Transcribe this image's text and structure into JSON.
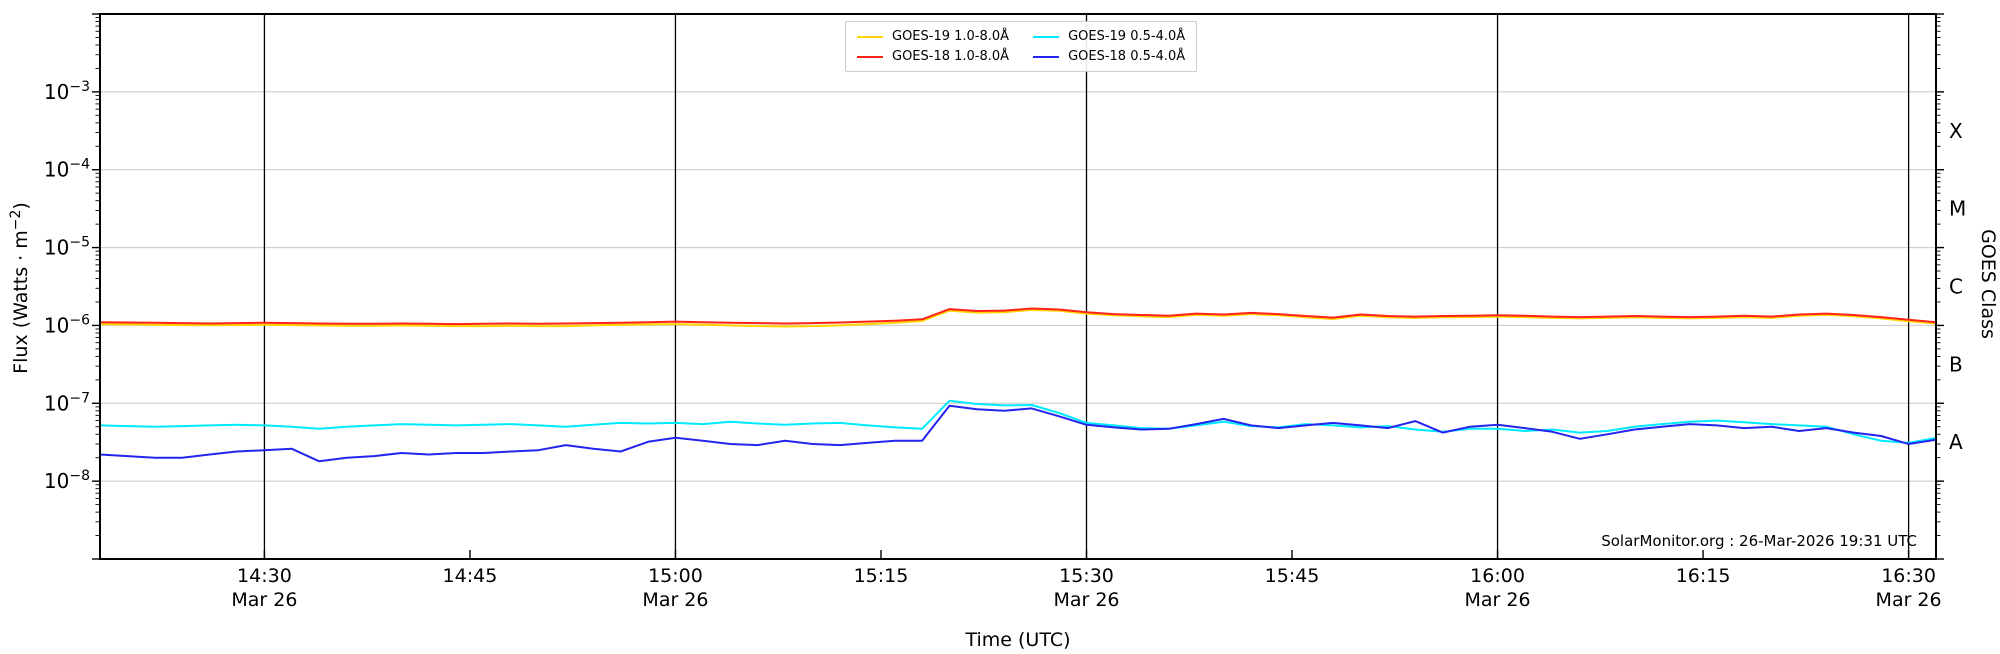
{
  "watermark": "SolarMonitor.org : 26-Mar-2026 19:31 UTC",
  "legend": {
    "items": [
      {
        "label": "GOES-19 1.0-8.0Å",
        "color": "#ffd400"
      },
      {
        "label": "GOES-18 1.0-8.0Å",
        "color": "#ff2318"
      },
      {
        "label": "GOES-19 0.5-4.0Å",
        "color": "#00eaff"
      },
      {
        "label": "GOES-18 0.5-4.0Å",
        "color": "#2424ee"
      }
    ]
  },
  "chart_data": {
    "type": "line",
    "title": "",
    "xlabel": "Time (UTC)",
    "ylabel": "Flux (Watts · m⁻²)",
    "ylabel_parts": [
      "Flux (Watts · m",
      "−2",
      ")"
    ],
    "grid": true,
    "legend_position": "top-center",
    "x_axis": {
      "units": "minutes after 14:00 UTC, Mar 26",
      "start_minute": 18,
      "step_minutes": 2,
      "end_minute": 152,
      "ticks": [
        {
          "minute": 30,
          "label": "14:30",
          "sublabel": "Mar 26",
          "major_line": true
        },
        {
          "minute": 45,
          "label": "14:45"
        },
        {
          "minute": 60,
          "label": "15:00",
          "sublabel": "Mar 26",
          "major_line": true
        },
        {
          "minute": 75,
          "label": "15:15"
        },
        {
          "minute": 90,
          "label": "15:30",
          "sublabel": "Mar 26",
          "major_line": true
        },
        {
          "minute": 105,
          "label": "15:45"
        },
        {
          "minute": 120,
          "label": "16:00",
          "sublabel": "Mar 26",
          "major_line": true
        },
        {
          "minute": 135,
          "label": "16:15"
        },
        {
          "minute": 150,
          "label": "16:30",
          "sublabel": "Mar 26",
          "major_line": true
        }
      ]
    },
    "y_axis": {
      "scale": "log",
      "min_exp": -9,
      "max_exp": -2,
      "labeled_exps": [
        -3,
        -4,
        -5,
        -6,
        -7,
        -8
      ]
    },
    "right_axis": {
      "label": "GOES Class",
      "classes": [
        {
          "label": "X",
          "band": [
            -4,
            -3
          ]
        },
        {
          "label": "M",
          "band": [
            -5,
            -4
          ]
        },
        {
          "label": "C",
          "band": [
            -6,
            -5
          ]
        },
        {
          "label": "B",
          "band": [
            -7,
            -6
          ]
        },
        {
          "label": "A",
          "band": [
            -8,
            -7
          ]
        }
      ]
    },
    "series": [
      {
        "id": "goes-19-long",
        "name": "GOES-19 1.0-8.0Å",
        "color": "#ffd400",
        "scale": 1e-06,
        "values": [
          1.04,
          1.03,
          1.02,
          1.01,
          1.01,
          1.01,
          1.02,
          1.01,
          1.0,
          0.99,
          0.99,
          1.0,
          0.99,
          0.98,
          0.98,
          0.99,
          0.98,
          0.98,
          1.0,
          1.02,
          1.03,
          1.04,
          1.02,
          1.0,
          0.98,
          0.97,
          0.98,
          1.0,
          1.04,
          1.08,
          1.14,
          1.55,
          1.46,
          1.48,
          1.58,
          1.54,
          1.42,
          1.35,
          1.31,
          1.28,
          1.37,
          1.33,
          1.4,
          1.35,
          1.27,
          1.21,
          1.33,
          1.27,
          1.25,
          1.27,
          1.28,
          1.3,
          1.28,
          1.25,
          1.23,
          1.25,
          1.27,
          1.25,
          1.23,
          1.25,
          1.28,
          1.25,
          1.33,
          1.37,
          1.31,
          1.23,
          1.13,
          1.06
        ]
      },
      {
        "id": "goes-18-long",
        "name": "GOES-18 1.0-8.0Å",
        "color": "#ff2318",
        "scale": 1e-06,
        "values": [
          1.1,
          1.09,
          1.08,
          1.07,
          1.06,
          1.07,
          1.08,
          1.07,
          1.06,
          1.05,
          1.05,
          1.06,
          1.05,
          1.04,
          1.05,
          1.06,
          1.05,
          1.06,
          1.07,
          1.08,
          1.1,
          1.12,
          1.1,
          1.08,
          1.07,
          1.06,
          1.07,
          1.09,
          1.12,
          1.15,
          1.2,
          1.62,
          1.53,
          1.55,
          1.65,
          1.6,
          1.48,
          1.4,
          1.36,
          1.33,
          1.42,
          1.38,
          1.45,
          1.4,
          1.32,
          1.26,
          1.38,
          1.32,
          1.3,
          1.32,
          1.33,
          1.35,
          1.33,
          1.3,
          1.28,
          1.3,
          1.32,
          1.3,
          1.28,
          1.3,
          1.33,
          1.3,
          1.38,
          1.42,
          1.36,
          1.28,
          1.18,
          1.1
        ]
      },
      {
        "id": "goes-19-short",
        "name": "GOES-19 0.5-4.0Å",
        "color": "#00eaff",
        "scale": 1e-08,
        "values": [
          5.2,
          5.1,
          5.0,
          5.1,
          5.2,
          5.3,
          5.2,
          5.0,
          4.7,
          5.0,
          5.2,
          5.4,
          5.3,
          5.2,
          5.3,
          5.4,
          5.2,
          5.0,
          5.3,
          5.6,
          5.5,
          5.6,
          5.4,
          5.8,
          5.5,
          5.3,
          5.5,
          5.6,
          5.2,
          4.9,
          4.7,
          10.8,
          9.8,
          9.4,
          9.5,
          7.5,
          5.6,
          5.2,
          4.8,
          4.7,
          5.2,
          5.8,
          5.1,
          4.9,
          5.4,
          5.2,
          4.9,
          5.1,
          4.6,
          4.3,
          4.7,
          4.7,
          4.4,
          4.6,
          4.2,
          4.4,
          5.0,
          5.4,
          5.8,
          6.0,
          5.7,
          5.4,
          5.2,
          5.0,
          4.0,
          3.3,
          3.1,
          3.6
        ]
      },
      {
        "id": "goes-18-short",
        "name": "GOES-18 0.5-4.0Å",
        "color": "#2424ee",
        "scale": 1e-08,
        "values": [
          2.2,
          2.1,
          2.0,
          2.0,
          2.2,
          2.4,
          2.5,
          2.6,
          1.8,
          2.0,
          2.1,
          2.3,
          2.2,
          2.3,
          2.3,
          2.4,
          2.5,
          2.9,
          2.6,
          2.4,
          3.2,
          3.6,
          3.3,
          3.0,
          2.9,
          3.3,
          3.0,
          2.9,
          3.1,
          3.3,
          3.3,
          9.3,
          8.4,
          8.0,
          8.6,
          6.8,
          5.3,
          4.9,
          4.6,
          4.7,
          5.4,
          6.3,
          5.2,
          4.8,
          5.2,
          5.6,
          5.2,
          4.8,
          5.9,
          4.2,
          5.0,
          5.3,
          4.8,
          4.3,
          3.5,
          4.0,
          4.6,
          5.0,
          5.4,
          5.2,
          4.8,
          5.0,
          4.4,
          4.8,
          4.2,
          3.8,
          3.0,
          3.4
        ]
      }
    ]
  }
}
